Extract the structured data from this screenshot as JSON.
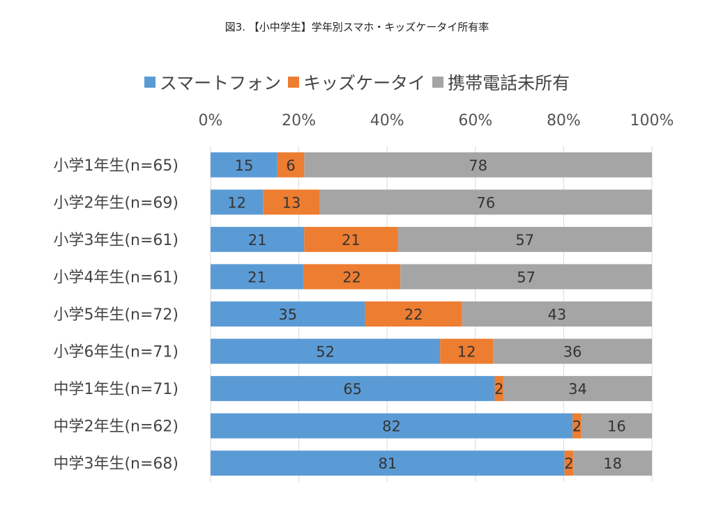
{
  "chart_data": {
    "type": "bar",
    "orientation": "horizontal",
    "stacked": "percent",
    "title": "図3. 【小中学生】学年別スマホ・キッズケータイ所有率",
    "categories": [
      "小学1年生(n=65)",
      "小学2年生(n=69)",
      "小学3年生(n=61)",
      "小学4年生(n=61)",
      "小学5年生(n=72)",
      "小学6年生(n=71)",
      "中学1年生(n=71)",
      "中学2年生(n=62)",
      "中学3年生(n=68)"
    ],
    "series": [
      {
        "name": "スマートフォン",
        "color": "#5B9BD5",
        "values": [
          15,
          12,
          21,
          21,
          35,
          52,
          65,
          82,
          81
        ]
      },
      {
        "name": "キッズケータイ",
        "color": "#ED7D31",
        "values": [
          6,
          13,
          21,
          22,
          22,
          12,
          2,
          2,
          2
        ]
      },
      {
        "name": "携帯電話未所有",
        "color": "#A5A5A5",
        "values": [
          78,
          76,
          57,
          57,
          43,
          36,
          34,
          16,
          18
        ]
      }
    ],
    "x_ticks": [
      "0%",
      "20%",
      "40%",
      "60%",
      "80%",
      "100%"
    ],
    "xlim": [
      0,
      100
    ],
    "x_axis_position": "top",
    "legend_position": "top",
    "grid": true
  }
}
